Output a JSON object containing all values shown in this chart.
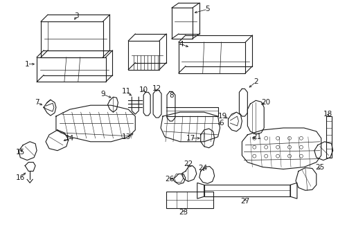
{
  "background_color": "#ffffff",
  "line_color": "#1a1a1a",
  "figsize": [
    4.89,
    3.6
  ],
  "dpi": 100,
  "font_size": 7.5,
  "lw": 0.8
}
